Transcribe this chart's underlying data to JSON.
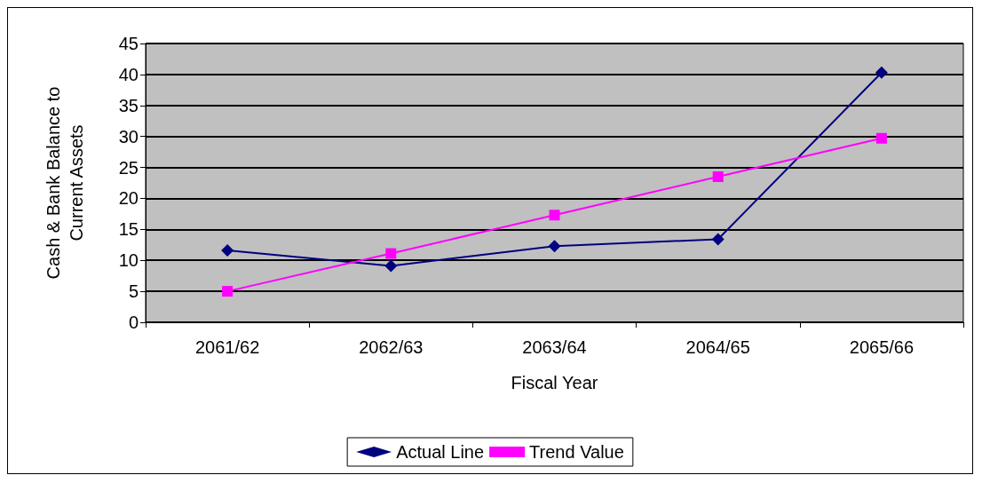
{
  "chart_data": {
    "type": "line",
    "xlabel": "Fiscal Year",
    "ylabel": "Cash & Bank Balance to\nCurrent Assets",
    "categories": [
      "2061/62",
      "2062/63",
      "2063/64",
      "2064/65",
      "2065/66"
    ],
    "series": [
      {
        "name": "Actual Line",
        "color": "#000080",
        "marker": "diamond",
        "values": [
          11.6,
          9.1,
          12.3,
          13.4,
          40.3
        ]
      },
      {
        "name": "Trend Value",
        "color": "#ff00ff",
        "marker": "square",
        "values": [
          5.0,
          11.1,
          17.3,
          23.5,
          29.7
        ]
      }
    ],
    "ylim": [
      0,
      45
    ],
    "yticks": [
      0,
      5,
      10,
      15,
      20,
      25,
      30,
      35,
      40,
      45
    ],
    "grid": "y",
    "legend": "bottom"
  }
}
